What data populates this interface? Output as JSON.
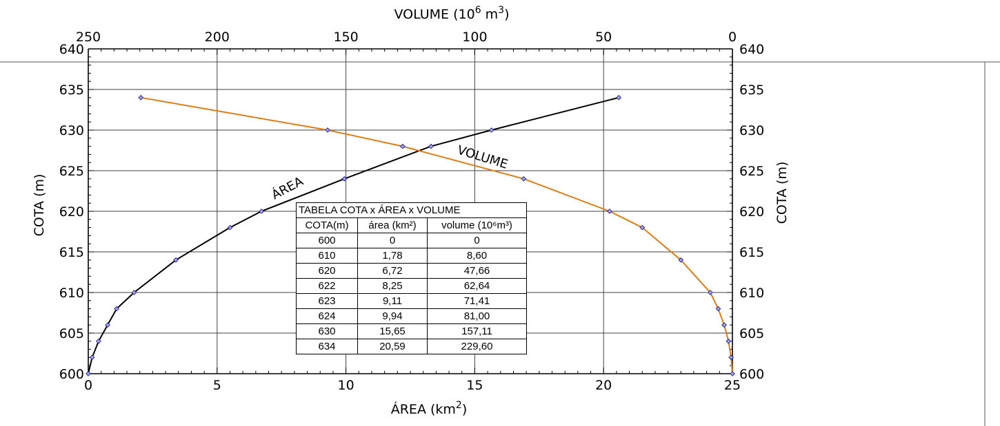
{
  "chart_data": {
    "type": "line",
    "x_bottom_label": "ÁREA (km 2)",
    "x_top_label": "VOLUME (10 6 m 3)",
    "y_label": "COTA (m)",
    "x_bottom_range": [
      0,
      25
    ],
    "x_top_range": [
      250,
      0
    ],
    "y_range": [
      600,
      640
    ],
    "x_bottom_ticks": [
      "0",
      "5",
      "10",
      "15",
      "20",
      "25"
    ],
    "x_top_ticks": [
      "250",
      "200",
      "150",
      "100",
      "50",
      "0"
    ],
    "y_ticks": [
      "600",
      "605",
      "610",
      "615",
      "620",
      "625",
      "630",
      "635",
      "640"
    ],
    "grid": true,
    "series": [
      {
        "name": "ÁREA",
        "axis": "bottom",
        "color": "#000000",
        "points": [
          {
            "x": 0,
            "y": 600
          },
          {
            "x": 0.15,
            "y": 602
          },
          {
            "x": 0.4,
            "y": 604
          },
          {
            "x": 0.75,
            "y": 606
          },
          {
            "x": 1.1,
            "y": 608
          },
          {
            "x": 1.78,
            "y": 610
          },
          {
            "x": 3.4,
            "y": 614
          },
          {
            "x": 5.5,
            "y": 618
          },
          {
            "x": 6.72,
            "y": 620
          },
          {
            "x": 9.94,
            "y": 624
          },
          {
            "x": 13.3,
            "y": 628
          },
          {
            "x": 15.65,
            "y": 630
          },
          {
            "x": 20.59,
            "y": 634
          }
        ]
      },
      {
        "name": "VOLUME",
        "axis": "top",
        "color": "#e07b10",
        "points": [
          {
            "x": 0,
            "y": 600
          },
          {
            "x": 0.5,
            "y": 602
          },
          {
            "x": 1.5,
            "y": 604
          },
          {
            "x": 3.2,
            "y": 606
          },
          {
            "x": 5.5,
            "y": 608
          },
          {
            "x": 8.6,
            "y": 610
          },
          {
            "x": 20,
            "y": 614
          },
          {
            "x": 35,
            "y": 618
          },
          {
            "x": 47.66,
            "y": 620
          },
          {
            "x": 81,
            "y": 624
          },
          {
            "x": 128,
            "y": 628
          },
          {
            "x": 157.11,
            "y": 630
          },
          {
            "x": 229.6,
            "y": 634
          }
        ]
      }
    ]
  },
  "table": {
    "title": "TABELA COTA x ÁREA x VOLUME",
    "headers": [
      "COTA(m)",
      "área (km²)",
      "volume (10⁶m³)"
    ],
    "rows": [
      [
        "600",
        "0",
        "0"
      ],
      [
        "610",
        "1,78",
        "8,60"
      ],
      [
        "620",
        "6,72",
        "47,66"
      ],
      [
        "622",
        "8,25",
        "62,64"
      ],
      [
        "623",
        "9,11",
        "71,41"
      ],
      [
        "624",
        "9,94",
        "81,00"
      ],
      [
        "630",
        "15,65",
        "157,11"
      ],
      [
        "634",
        "20,59",
        "229,60"
      ]
    ]
  }
}
